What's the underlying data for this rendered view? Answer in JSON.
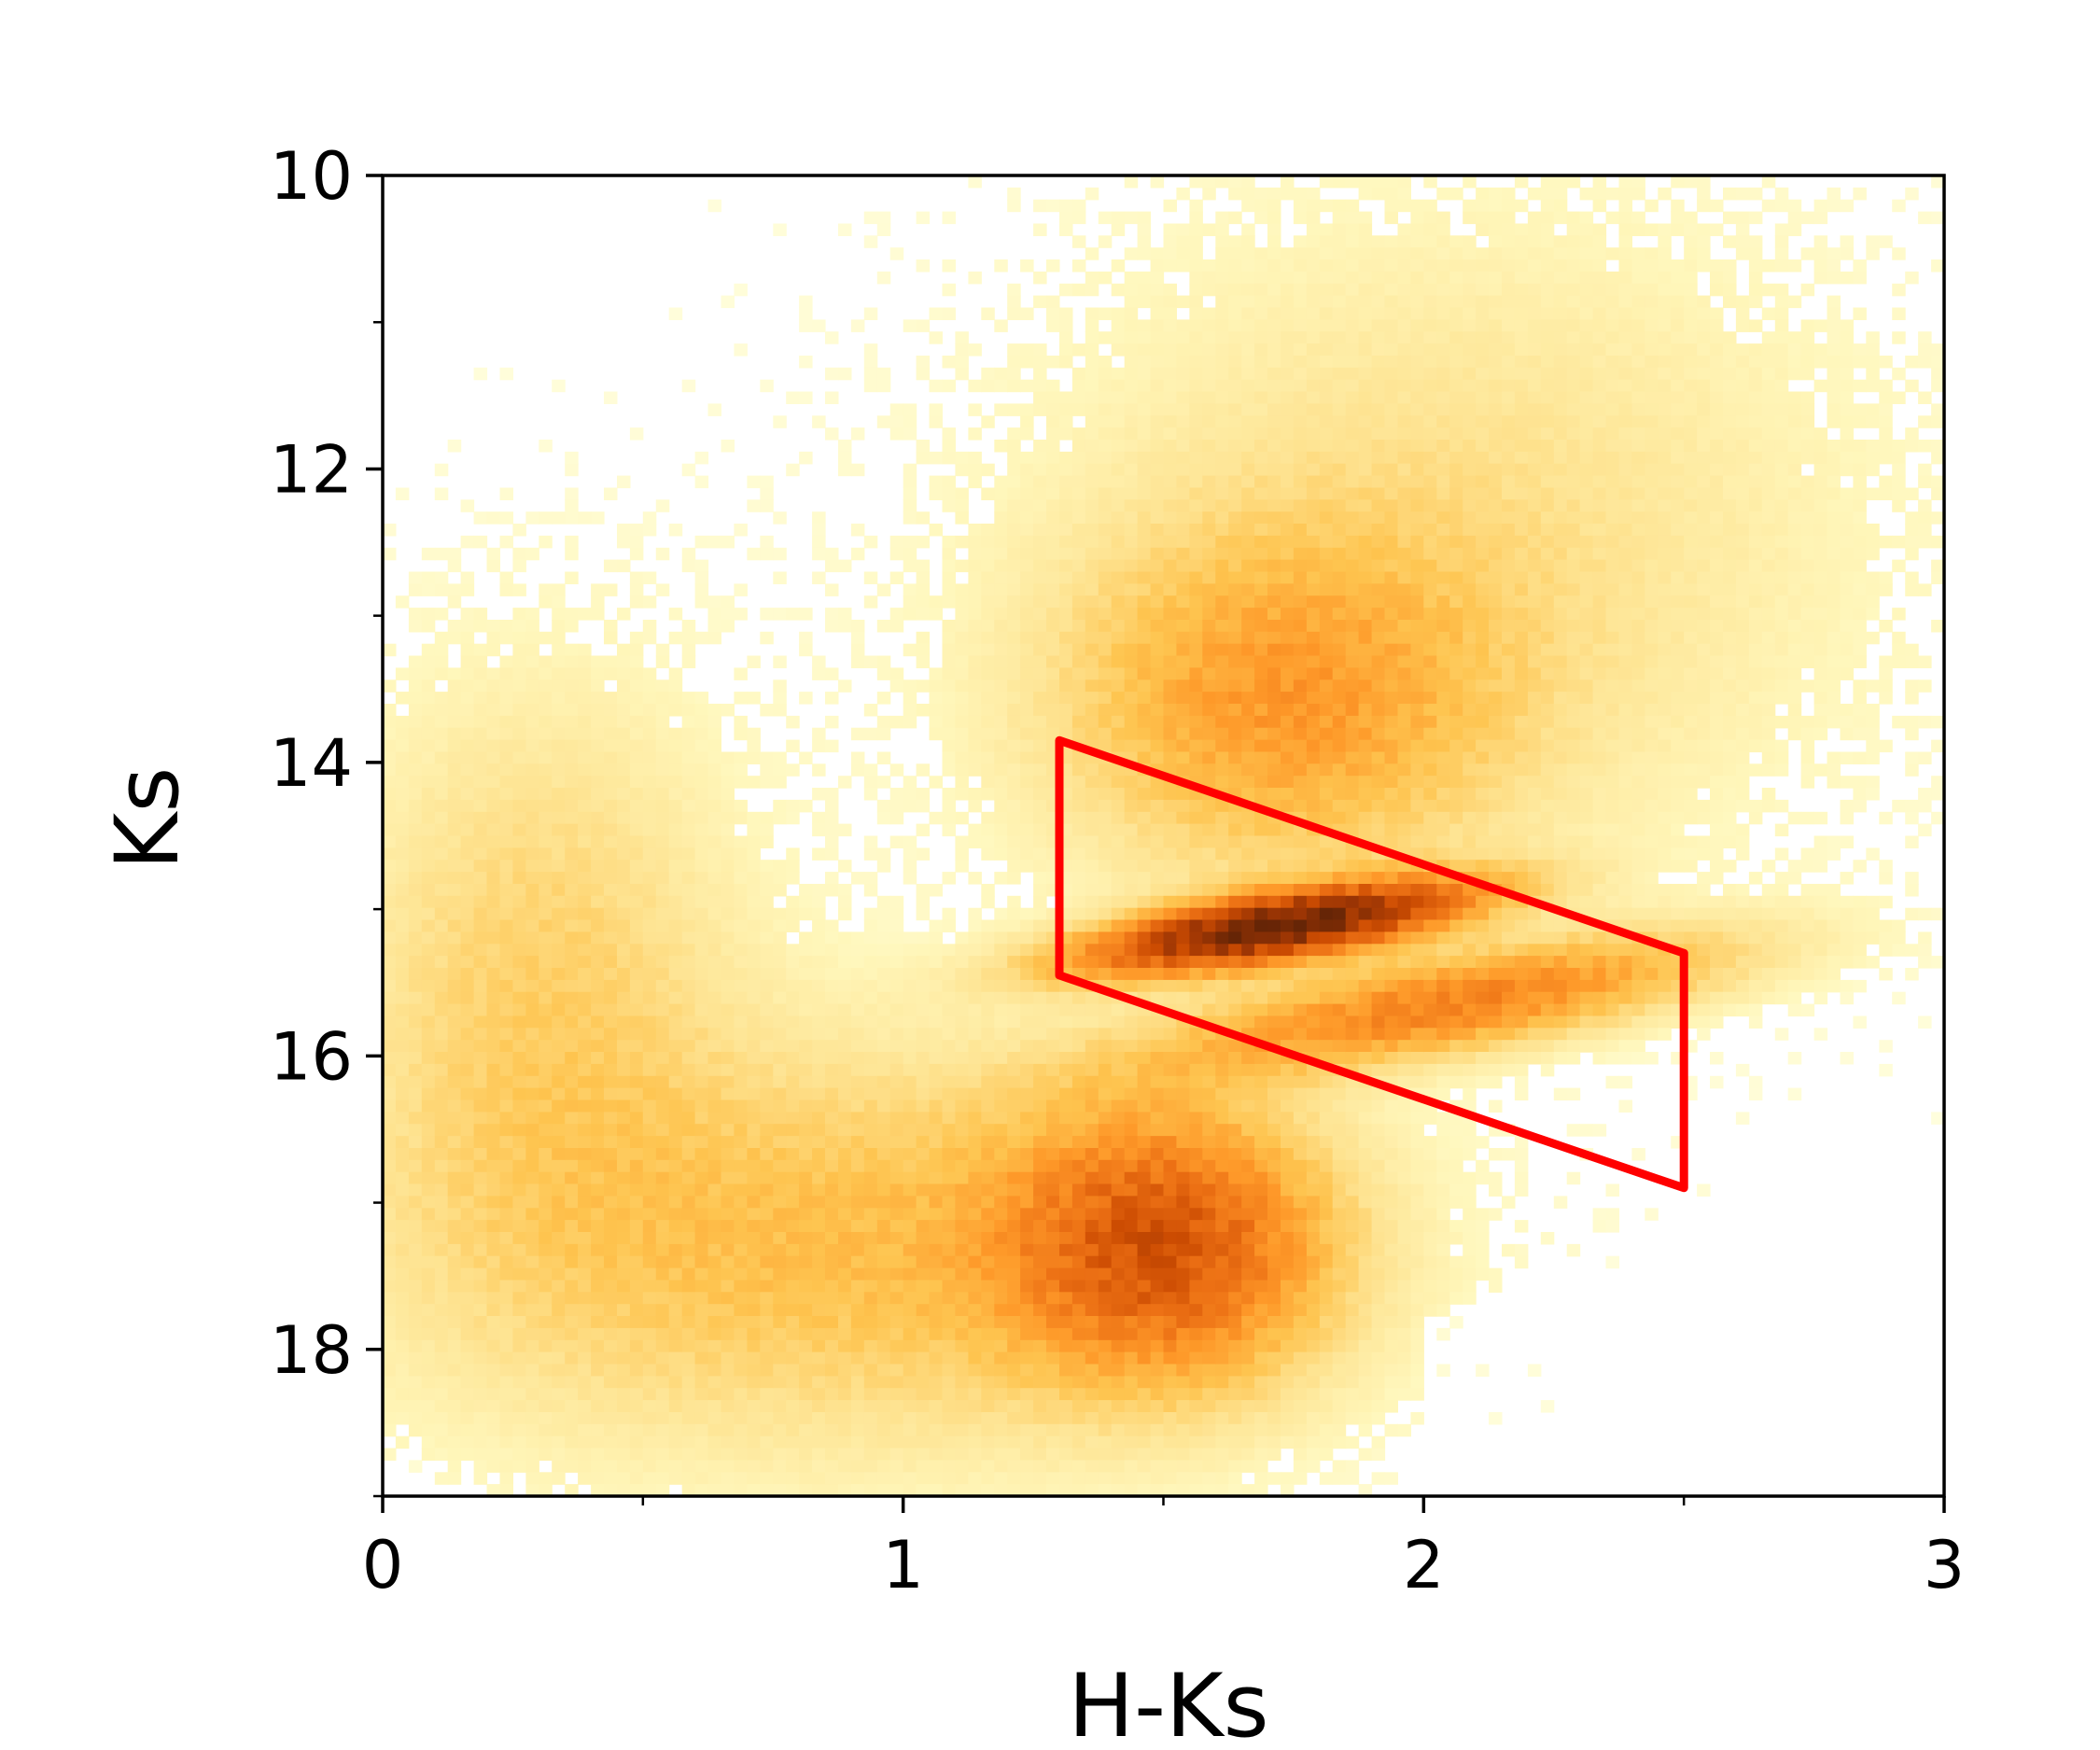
{
  "chart_data": {
    "type": "heatmap",
    "title": "",
    "xlabel": "H-Ks",
    "ylabel": "Ks",
    "xlim": [
      0,
      3
    ],
    "ylim": [
      19,
      10
    ],
    "y_inverted": true,
    "grid": false,
    "x_major_ticks": [
      0,
      1,
      2,
      3
    ],
    "x_major_tick_labels": [
      "0",
      "1",
      "2",
      "3"
    ],
    "x_minor_ticks": [
      0.5,
      1.5,
      2.5
    ],
    "y_major_ticks": [
      10,
      12,
      14,
      16,
      18
    ],
    "y_major_tick_labels": [
      "10",
      "12",
      "14",
      "16",
      "18"
    ],
    "y_minor_ticks": [
      11,
      13,
      15,
      17,
      19
    ],
    "colormap": "YlOrBr",
    "colormap_stops": [
      "#ffffe5",
      "#fff7bc",
      "#fee391",
      "#fec44f",
      "#fe9929",
      "#ec7014",
      "#cc4c02",
      "#993404",
      "#662506"
    ],
    "density_components": [
      {
        "name": "red-clump",
        "x": 1.72,
        "y": 15.12,
        "sx": 0.24,
        "sy": 0.15,
        "slope": -0.55,
        "weight": 1.0
      },
      {
        "name": "red-clump-tail",
        "x": 2.05,
        "y": 15.65,
        "sx": 0.35,
        "sy": 0.22,
        "slope": -0.6,
        "weight": 0.38
      },
      {
        "name": "faint-blob",
        "x": 1.5,
        "y": 17.3,
        "sx": 0.2,
        "sy": 0.6,
        "slope": 0.0,
        "weight": 0.5
      },
      {
        "name": "upper-branch",
        "x": 1.72,
        "y": 13.6,
        "sx": 0.28,
        "sy": 0.75,
        "slope": 0.0,
        "weight": 0.26
      },
      {
        "name": "broad-faint",
        "x": 0.9,
        "y": 17.3,
        "sx": 0.55,
        "sy": 0.9,
        "slope": 0.0,
        "weight": 0.2
      },
      {
        "name": "bright-red",
        "x": 2.05,
        "y": 12.5,
        "sx": 0.5,
        "sy": 1.4,
        "slope": 0.0,
        "weight": 0.1
      },
      {
        "name": "foreground-disk",
        "x": 0.3,
        "y": 15.5,
        "sx": 0.25,
        "sy": 1.3,
        "slope": 0.0,
        "weight": 0.14
      }
    ],
    "selection_box": {
      "color": "#ff0000",
      "vertices": [
        {
          "x": 1.3,
          "y": 13.85
        },
        {
          "x": 2.5,
          "y": 15.3
        },
        {
          "x": 2.5,
          "y": 16.9
        },
        {
          "x": 1.3,
          "y": 15.45
        }
      ]
    }
  }
}
